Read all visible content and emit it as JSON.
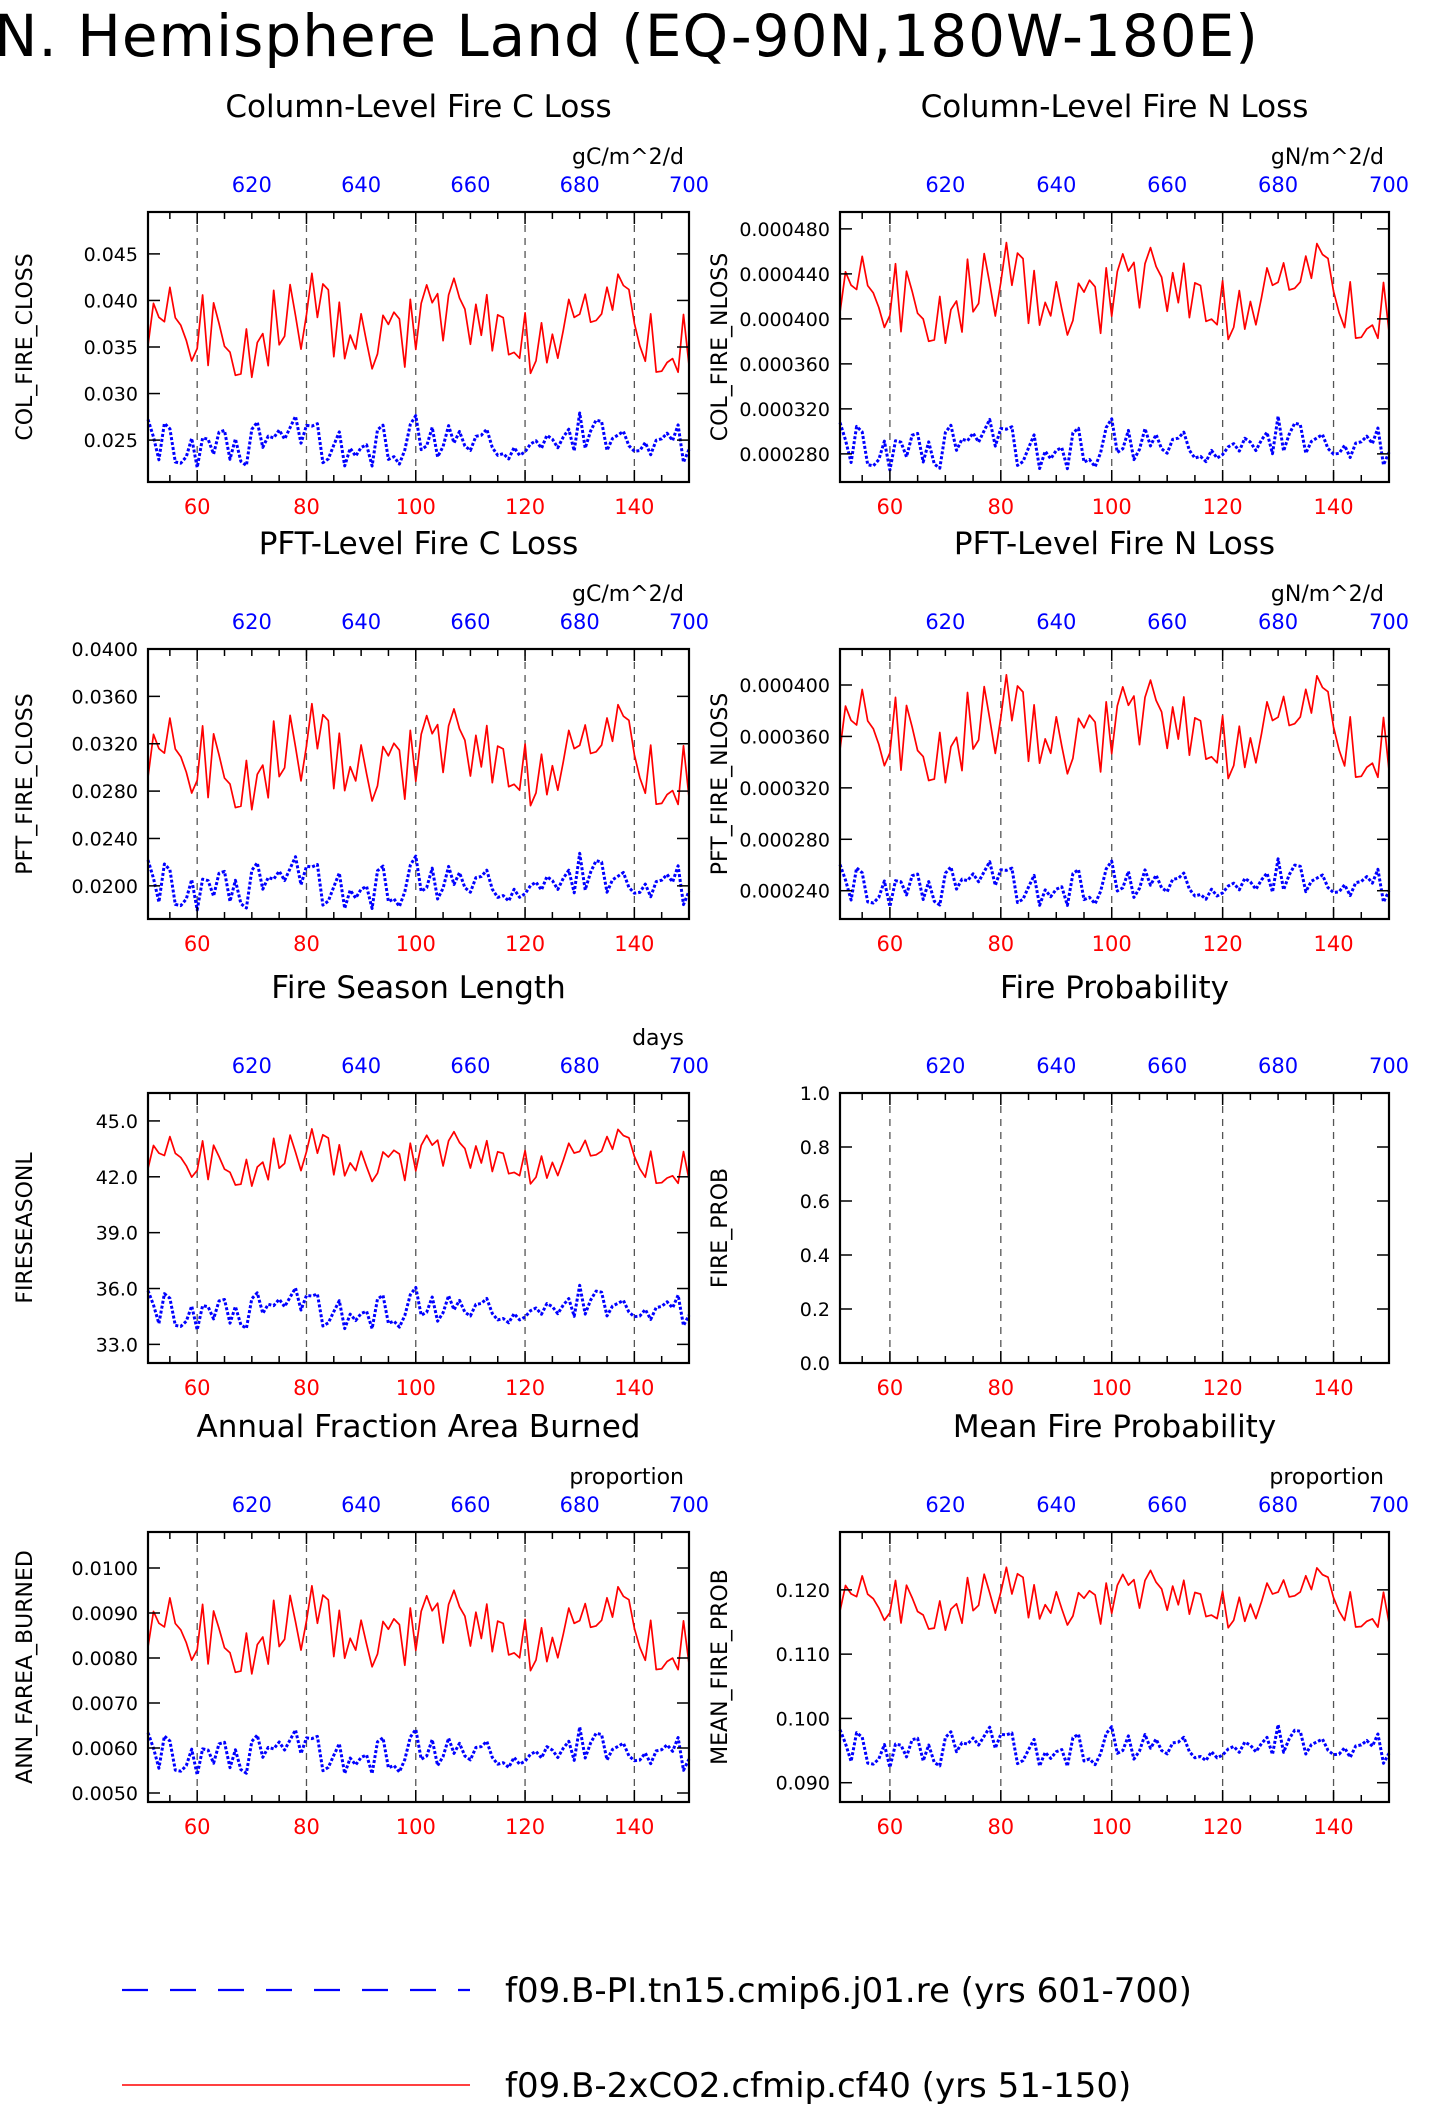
{
  "page": {
    "title": "N. Hemisphere Land (EQ-90N,180W-180E)"
  },
  "legend": [
    {
      "label": "f09.B-PI.tn15.cmip6.j01.re (yrs 601-700)",
      "color": "#0000ff",
      "style": "dashed"
    },
    {
      "label": "f09.B-2xCO2.cfmip.cf40 (yrs 51-150)",
      "color": "#ff0000",
      "style": "solid"
    }
  ],
  "chart_data": [
    {
      "type": "line",
      "title": "Column-Level Fire C Loss",
      "ylabel": "COL_FIRE_CLOSS",
      "units": "gC/m^2/d",
      "xlim_bottom": [
        51,
        150
      ],
      "xlim_top": [
        601,
        700
      ],
      "xticks_bottom": [
        "60",
        "80",
        "100",
        "120",
        "140"
      ],
      "xticks_top": [
        "620",
        "640",
        "660",
        "680",
        "700"
      ],
      "ylim": [
        0.0205,
        0.0495
      ],
      "yticks": [
        "0.025",
        "0.030",
        "0.035",
        "0.040",
        "0.045"
      ],
      "yticks_values": [
        0.025,
        0.03,
        0.035,
        0.04,
        0.045
      ],
      "series": [
        {
          "color": "#ff0000",
          "style": "solid",
          "base": 0.0372,
          "amp": 0.004,
          "seed": 1
        },
        {
          "color": "#0000ff",
          "style": "dashed",
          "base": 0.0248,
          "amp": 0.0022,
          "seed": 2
        }
      ]
    },
    {
      "type": "line",
      "title": "Column-Level Fire N Loss",
      "ylabel": "COL_FIRE_NLOSS",
      "units": "gN/m^2/d",
      "xlim_bottom": [
        51,
        150
      ],
      "xlim_top": [
        601,
        700
      ],
      "xticks_bottom": [
        "60",
        "80",
        "100",
        "120",
        "140"
      ],
      "xticks_top": [
        "620",
        "640",
        "660",
        "680",
        "700"
      ],
      "ylim": [
        0.000255,
        0.000495
      ],
      "yticks": [
        "0.000280",
        "0.000320",
        "0.000360",
        "0.000400",
        "0.000440",
        "0.000480"
      ],
      "yticks_values": [
        0.00028,
        0.00032,
        0.00036,
        0.0004,
        0.00044,
        0.00048
      ],
      "series": [
        {
          "color": "#ff0000",
          "style": "solid",
          "base": 0.000422,
          "amp": 3.2e-05,
          "seed": 1
        },
        {
          "color": "#0000ff",
          "style": "dashed",
          "base": 0.000288,
          "amp": 1.8e-05,
          "seed": 2
        }
      ]
    },
    {
      "type": "line",
      "title": "PFT-Level Fire C Loss",
      "ylabel": "PFT_FIRE_CLOSS",
      "units": "gC/m^2/d",
      "xlim_bottom": [
        51,
        150
      ],
      "xlim_top": [
        601,
        700
      ],
      "xticks_bottom": [
        "60",
        "80",
        "100",
        "120",
        "140"
      ],
      "xticks_top": [
        "620",
        "640",
        "660",
        "680",
        "700"
      ],
      "ylim": [
        0.0172,
        0.04
      ],
      "yticks": [
        "0.0200",
        "0.0240",
        "0.0280",
        "0.0320",
        "0.0360",
        "0.0400"
      ],
      "yticks_values": [
        0.02,
        0.024,
        0.028,
        0.032,
        0.036,
        0.04
      ],
      "series": [
        {
          "color": "#ff0000",
          "style": "solid",
          "base": 0.0308,
          "amp": 0.0032,
          "seed": 1
        },
        {
          "color": "#0000ff",
          "style": "dashed",
          "base": 0.0202,
          "amp": 0.0018,
          "seed": 2
        }
      ]
    },
    {
      "type": "line",
      "title": "PFT-Level Fire N Loss",
      "ylabel": "PFT_FIRE_NLOSS",
      "units": "gN/m^2/d",
      "xlim_bottom": [
        51,
        150
      ],
      "xlim_top": [
        601,
        700
      ],
      "xticks_bottom": [
        "60",
        "80",
        "100",
        "120",
        "140"
      ],
      "xticks_top": [
        "620",
        "640",
        "660",
        "680",
        "700"
      ],
      "ylim": [
        0.000218,
        0.000428
      ],
      "yticks": [
        "0.000240",
        "0.000280",
        "0.000320",
        "0.000360",
        "0.000400"
      ],
      "yticks_values": [
        0.00024,
        0.00028,
        0.00032,
        0.00036,
        0.0004
      ],
      "series": [
        {
          "color": "#ff0000",
          "style": "solid",
          "base": 0.000365,
          "amp": 3e-05,
          "seed": 1
        },
        {
          "color": "#0000ff",
          "style": "dashed",
          "base": 0.000245,
          "amp": 1.4e-05,
          "seed": 2
        }
      ]
    },
    {
      "type": "line",
      "title": "Fire Season Length",
      "ylabel": "FIRESEASONL",
      "units": "days",
      "xlim_bottom": [
        51,
        150
      ],
      "xlim_top": [
        601,
        700
      ],
      "xticks_bottom": [
        "60",
        "80",
        "100",
        "120",
        "140"
      ],
      "xticks_top": [
        "620",
        "640",
        "660",
        "680",
        "700"
      ],
      "ylim": [
        32.0,
        46.5
      ],
      "yticks": [
        "33.0",
        "36.0",
        "39.0",
        "42.0",
        "45.0"
      ],
      "yticks_values": [
        33,
        36,
        39,
        42,
        45
      ],
      "series": [
        {
          "color": "#ff0000",
          "style": "solid",
          "base": 43.0,
          "amp": 1.1,
          "seed": 1
        },
        {
          "color": "#0000ff",
          "style": "dashed",
          "base": 34.9,
          "amp": 0.9,
          "seed": 2
        }
      ]
    },
    {
      "type": "line",
      "title": "Fire Probability",
      "ylabel": "FIRE_PROB",
      "units": "",
      "xlim_bottom": [
        51,
        150
      ],
      "xlim_top": [
        601,
        700
      ],
      "xticks_bottom": [
        "60",
        "80",
        "100",
        "120",
        "140"
      ],
      "xticks_top": [
        "620",
        "640",
        "660",
        "680",
        "700"
      ],
      "ylim": [
        0.0,
        1.0
      ],
      "yticks": [
        "0.0",
        "0.2",
        "0.4",
        "0.6",
        "0.8",
        "1.0"
      ],
      "yticks_values": [
        0,
        0.2,
        0.4,
        0.6,
        0.8,
        1.0
      ],
      "series": []
    },
    {
      "type": "line",
      "title": "Annual Fraction Area Burned",
      "ylabel": "ANN_FAREA_BURNED",
      "units": "proportion",
      "xlim_bottom": [
        51,
        150
      ],
      "xlim_top": [
        601,
        700
      ],
      "xticks_bottom": [
        "60",
        "80",
        "100",
        "120",
        "140"
      ],
      "xticks_top": [
        "620",
        "640",
        "660",
        "680",
        "700"
      ],
      "ylim": [
        0.0048,
        0.0108
      ],
      "yticks": [
        "0.0050",
        "0.0060",
        "0.0070",
        "0.0080",
        "0.0090",
        "0.0100"
      ],
      "yticks_values": [
        0.005,
        0.006,
        0.007,
        0.008,
        0.009,
        0.01
      ],
      "series": [
        {
          "color": "#ff0000",
          "style": "solid",
          "base": 0.0086,
          "amp": 0.0007,
          "seed": 1
        },
        {
          "color": "#0000ff",
          "style": "dashed",
          "base": 0.0059,
          "amp": 0.0004,
          "seed": 2
        }
      ]
    },
    {
      "type": "line",
      "title": "Mean Fire Probability",
      "ylabel": "MEAN_FIRE_PROB",
      "units": "proportion",
      "xlim_bottom": [
        51,
        150
      ],
      "xlim_top": [
        601,
        700
      ],
      "xticks_bottom": [
        "60",
        "80",
        "100",
        "120",
        "140"
      ],
      "xticks_top": [
        "620",
        "640",
        "660",
        "680",
        "700"
      ],
      "ylim": [
        0.087,
        0.129
      ],
      "yticks": [
        "0.090",
        "0.100",
        "0.110",
        "0.120"
      ],
      "yticks_values": [
        0.09,
        0.1,
        0.11,
        0.12
      ],
      "series": [
        {
          "color": "#ff0000",
          "style": "solid",
          "base": 0.1185,
          "amp": 0.0035,
          "seed": 1
        },
        {
          "color": "#0000ff",
          "style": "dashed",
          "base": 0.0955,
          "amp": 0.0025,
          "seed": 2
        }
      ]
    }
  ]
}
